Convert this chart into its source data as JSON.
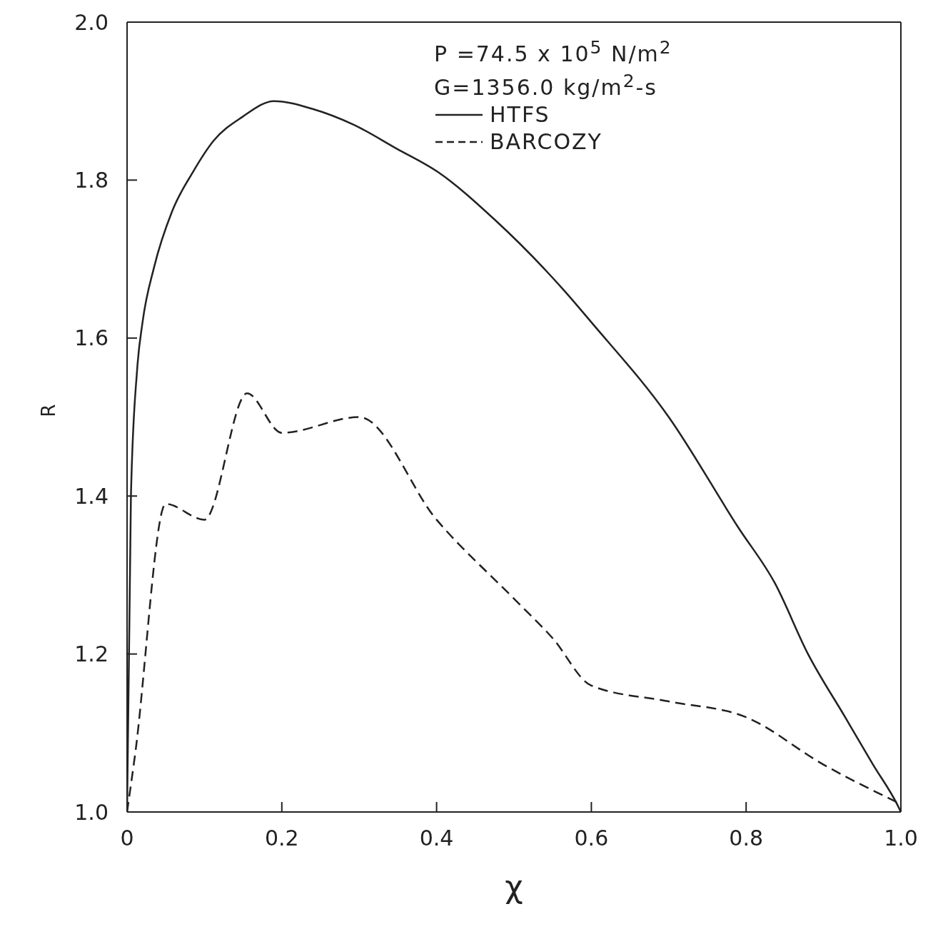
{
  "chart_data": {
    "type": "line",
    "xlabel": "χ",
    "ylabel": "R",
    "annotations": [
      "P =74.5 x 10$^{5}$ N/m$^{2}$",
      "G=1356.0 kg/m$^{2}$-s"
    ],
    "xlim": [
      0,
      1
    ],
    "ylim": [
      1,
      2
    ],
    "xticks": [
      0,
      0.2,
      0.4,
      0.6,
      0.8,
      {
        "value": 1,
        "label": "1.0"
      }
    ],
    "yticks": [
      {
        "value": 1,
        "label": "1.0"
      },
      1.2,
      1.4,
      1.6,
      1.8,
      {
        "value": 2,
        "label": "2.0"
      }
    ],
    "legend": "top",
    "marker": "none",
    "series": [
      {
        "name": "HTFS",
        "color": "#222222",
        "line_style": "solid",
        "x": [
          0,
          0.005,
          0.013,
          0.02,
          0.035,
          0.058,
          0.085,
          0.112,
          0.149,
          0.19,
          0.24,
          0.293,
          0.348,
          0.402,
          0.475,
          0.565,
          0.6,
          0.7,
          0.79,
          0.837,
          0.88,
          0.928,
          0.964,
          0.995,
          1
        ],
        "values": [
          1,
          1.4,
          1.56,
          1.62,
          1.69,
          1.76,
          1.81,
          1.85,
          1.88,
          1.9,
          1.89,
          1.87,
          1.84,
          1.81,
          1.75,
          1.66,
          1.62,
          1.5,
          1.36,
          1.29,
          1.2,
          1.12,
          1.06,
          1.01,
          1
        ]
      },
      {
        "name": "BARCOZY",
        "color": "#222222",
        "line_style": "dashed",
        "x": [
          0,
          0.01,
          0.05,
          0.1,
          0.155,
          0.2,
          0.3,
          0.4,
          0.5,
          0.55,
          0.6,
          0.7,
          0.8,
          0.9,
          1
        ],
        "values": [
          1,
          1.07,
          1.39,
          1.37,
          1.53,
          1.48,
          1.5,
          1.37,
          1.27,
          1.22,
          1.16,
          1.14,
          1.12,
          1.06,
          1.01
        ]
      }
    ]
  }
}
